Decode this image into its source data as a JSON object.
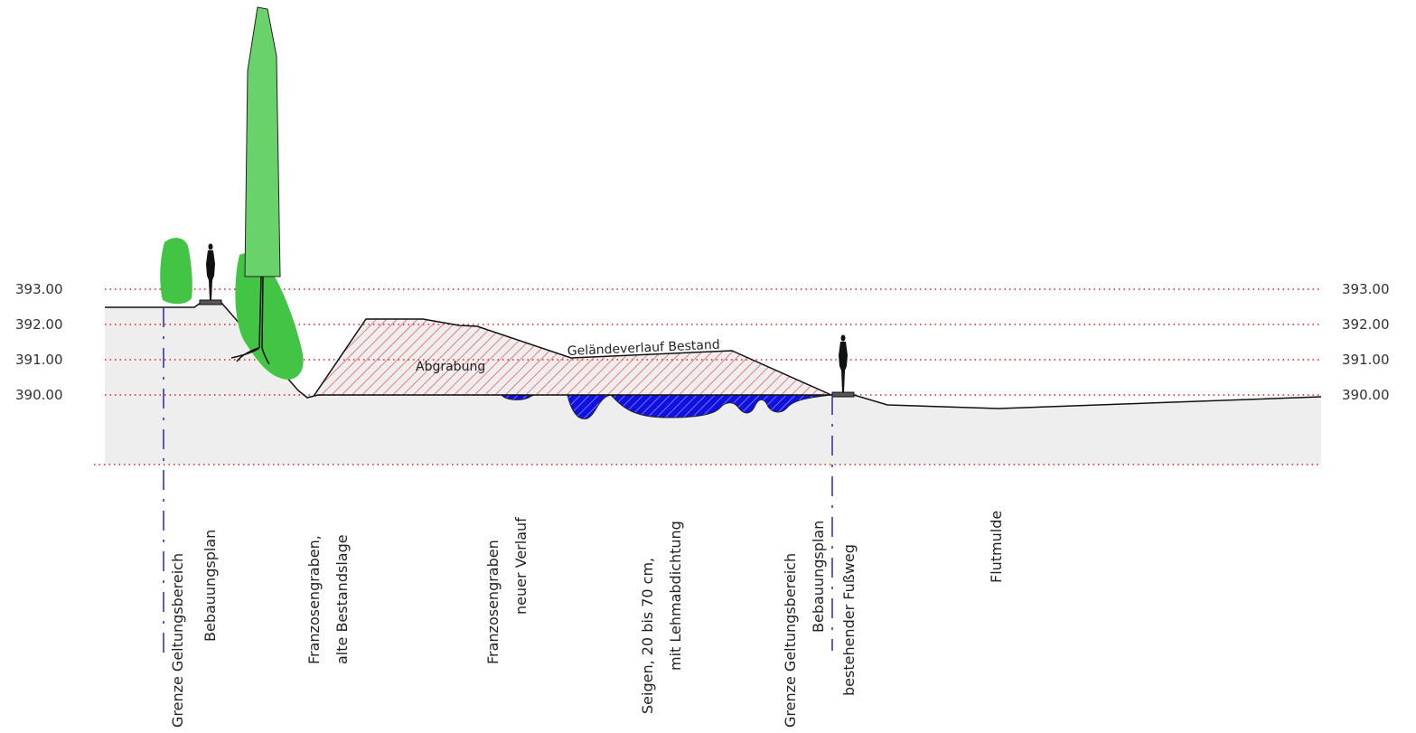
{
  "elevation_levels": [
    "393.00",
    "392.00",
    "391.00",
    "390.00"
  ],
  "annotations": {
    "abgrabung": "Abgrabung",
    "gelaendeverlauf": "Geländeverlauf Bestand"
  },
  "labels": [
    {
      "line1": "Grenze Geltungsbereich",
      "line2": "Bebauungsplan"
    },
    {
      "line1": "Franzosengraben,",
      "line2": "alte Bestandslage"
    },
    {
      "line1": "Franzosengraben",
      "line2": "neuer Verlauf"
    },
    {
      "line1": "Seigen, 20 bis 70 cm,",
      "line2": "mit Lehmabdichtung"
    },
    {
      "line1": "Grenze Geltungsbereich",
      "line2": "Bebauungsplan"
    },
    {
      "line1": "bestehender Fußweg",
      "line2": ""
    },
    {
      "line1": "Flutmulde",
      "line2": ""
    }
  ],
  "colors": {
    "ground": "#eeeeee",
    "level_line": "#e02020",
    "boundary_line": "#2a2aa0",
    "excavation_hatch": "#e86060",
    "water": "#1010e0",
    "tree": "#44c444",
    "tall_tree": "#6ad26a"
  }
}
